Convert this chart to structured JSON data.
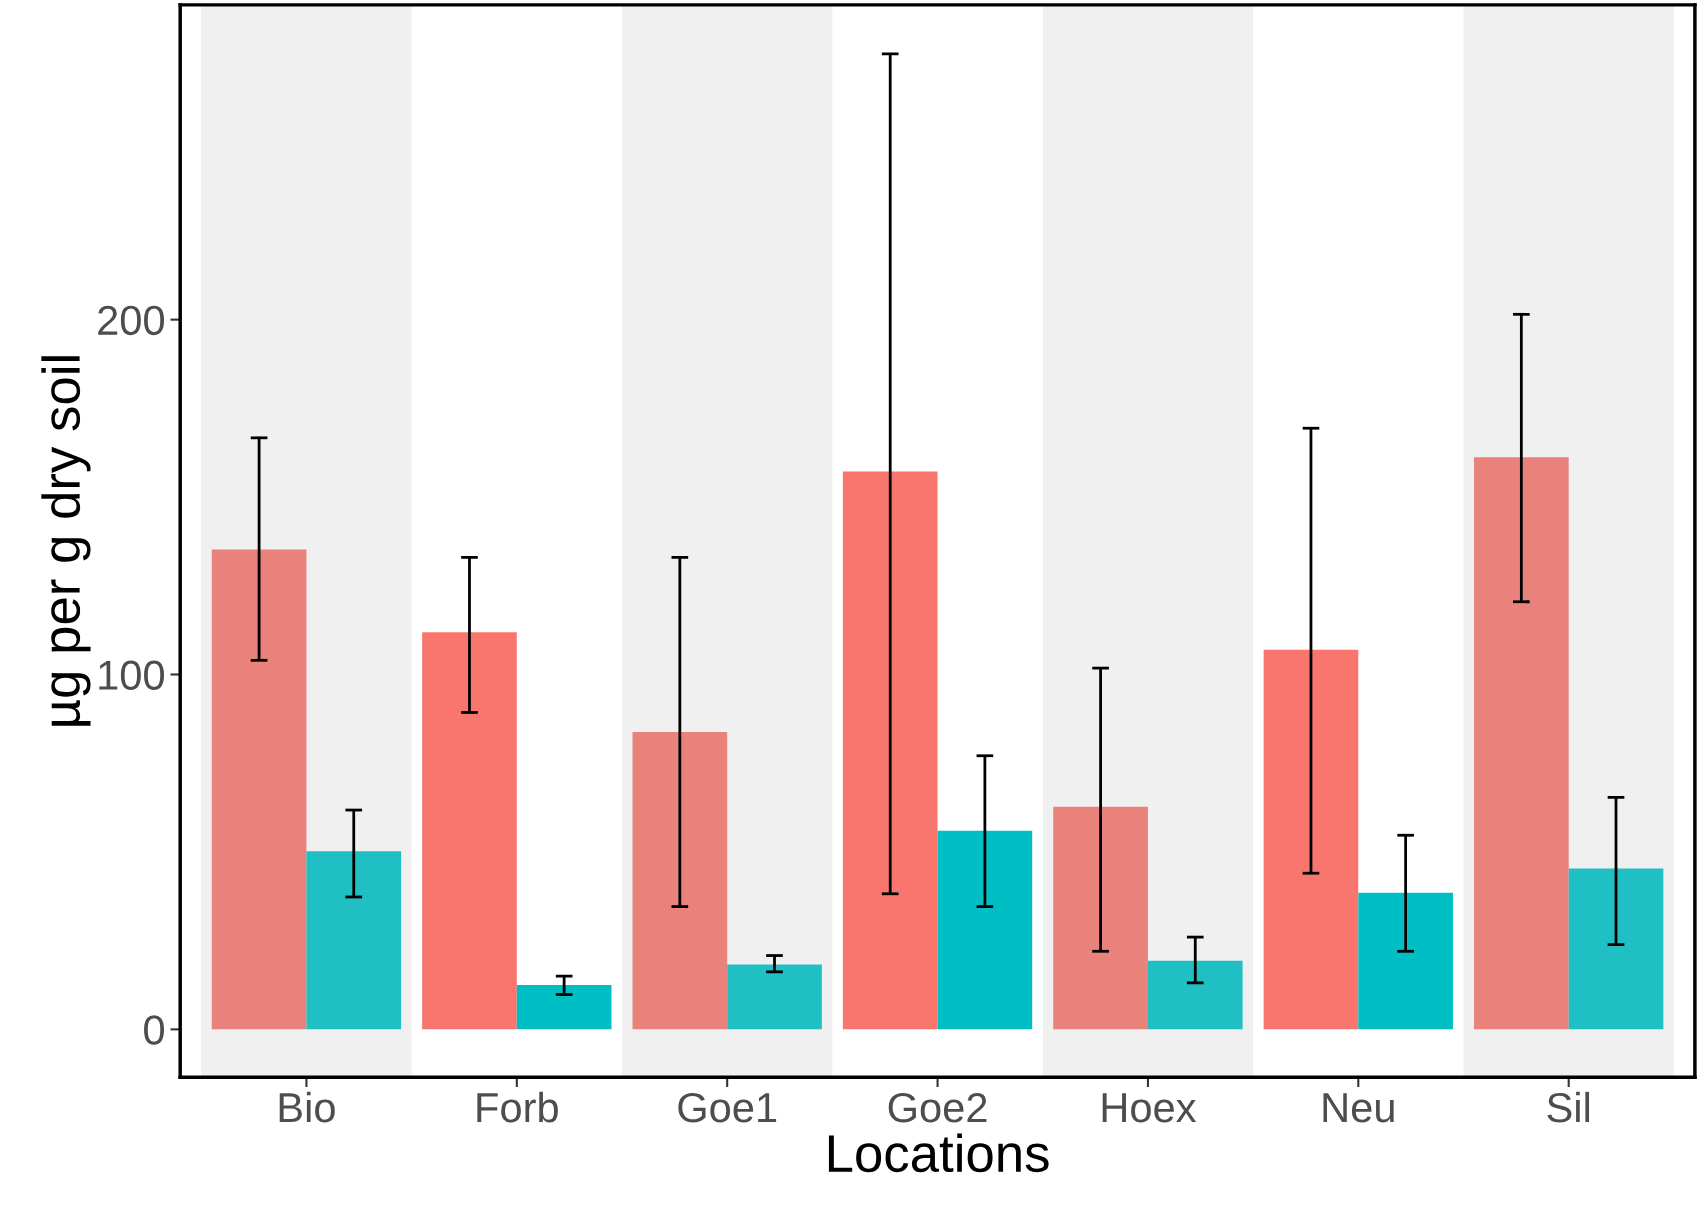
{
  "chart_data": {
    "type": "bar",
    "xlabel": "Locations",
    "ylabel": "µg per g dry soil",
    "categories": [
      "Bio",
      "Forb",
      "Goe1",
      "Goe2",
      "Hoex",
      "Neu",
      "Sil"
    ],
    "series": [
      {
        "colors": [
          "#e8827a",
          "#f8766d",
          "#e8827a",
          "#f8766d",
          "#e8827a",
          "#f8766d",
          "#e8827a"
        ],
        "values": [
          135.2,
          111.9,
          83.8,
          157.2,
          62.7,
          107,
          161.2
        ],
        "errors": [
          [
            104,
            166.7
          ],
          [
            89.3,
            133
          ],
          [
            34.6,
            133
          ],
          [
            38.2,
            274.9
          ],
          [
            22,
            101.8
          ],
          [
            44,
            169.4
          ],
          [
            120.5,
            201.5
          ]
        ]
      },
      {
        "colors": [
          "#1fbfc4",
          "#00bfc4",
          "#1fbfc4",
          "#00bfc4",
          "#1fbfc4",
          "#00bfc4",
          "#1fbfc4"
        ],
        "values": [
          50.2,
          12.5,
          18.3,
          56,
          19.3,
          38.5,
          45.3
        ],
        "errors": [
          [
            37.3,
            61.8
          ],
          [
            9.8,
            15
          ],
          [
            16.2,
            20.8
          ],
          [
            34.6,
            77.1
          ],
          [
            13.1,
            26
          ],
          [
            22,
            54.7
          ],
          [
            23.9,
            65.4
          ]
        ]
      }
    ],
    "bands": [
      {
        "axis": "x",
        "from": "Bio",
        "to": "Bio",
        "color": "#f0f0f0"
      },
      {
        "axis": "x",
        "from": "Goe1",
        "to": "Goe1",
        "color": "#f0f0f0"
      },
      {
        "axis": "x",
        "from": "Hoex",
        "to": "Hoex",
        "color": "#f0f0f0"
      },
      {
        "axis": "x",
        "from": "Sil",
        "to": "Sil",
        "color": "#f0f0f0"
      }
    ],
    "ylim": [
      -13.5,
      288.7
    ],
    "yticks": [
      0,
      100,
      200
    ],
    "grid": false
  }
}
